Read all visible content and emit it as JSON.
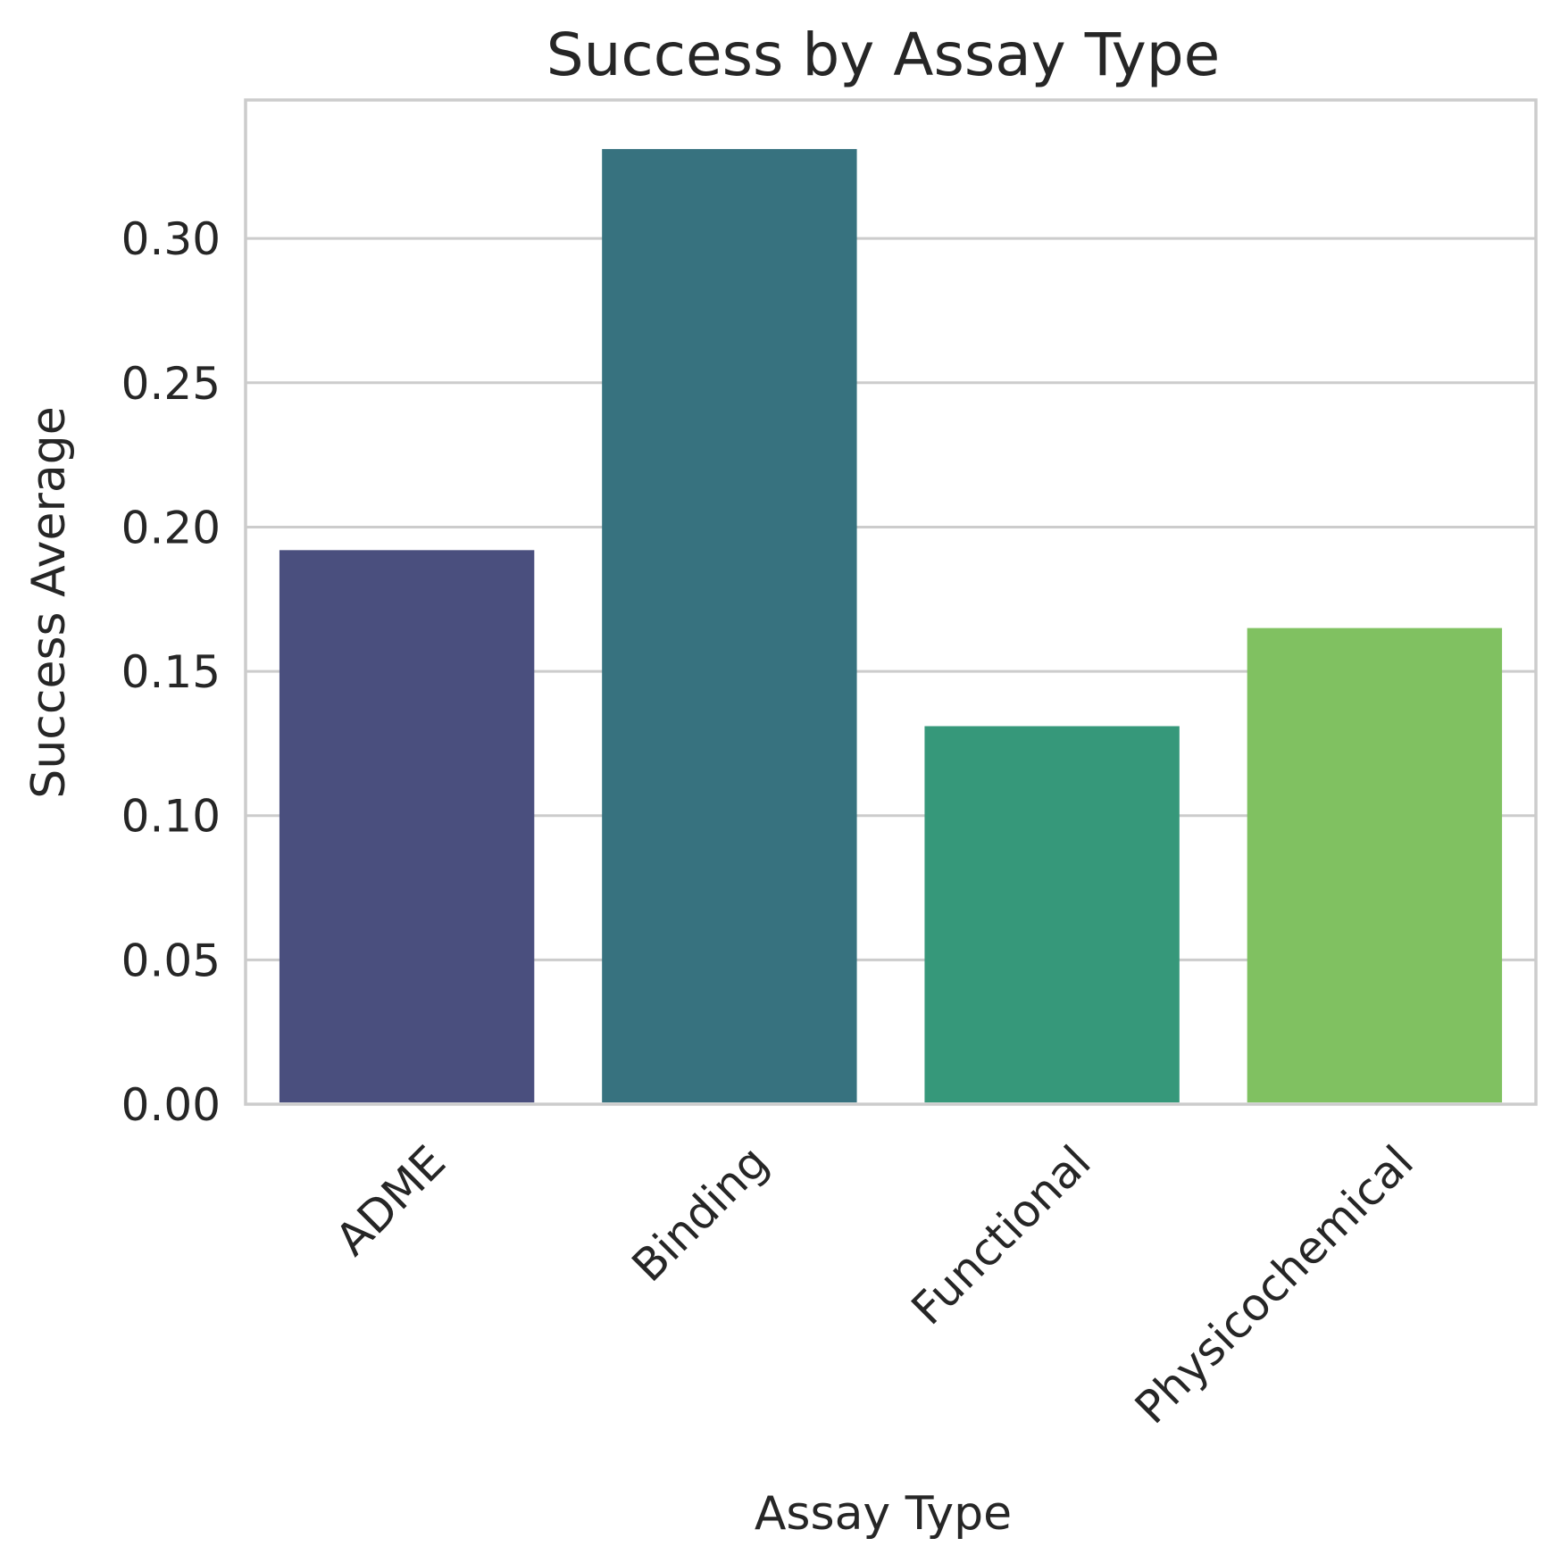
{
  "chart_data": {
    "type": "bar",
    "title": "Success by Assay Type",
    "xlabel": "Assay Type",
    "ylabel": "Success Average",
    "categories": [
      "ADME",
      "Binding",
      "Functional",
      "Physicochemical"
    ],
    "values": [
      0.192,
      0.331,
      0.131,
      0.165
    ],
    "colors": [
      "#4a4f7e",
      "#37727f",
      "#36987a",
      "#80c161"
    ],
    "ylim": [
      0,
      0.348
    ],
    "yticks": [
      0.0,
      0.05,
      0.1,
      0.15,
      0.2,
      0.25,
      0.3
    ],
    "ytick_labels": [
      "0.00",
      "0.05",
      "0.10",
      "0.15",
      "0.20",
      "0.25",
      "0.30"
    ],
    "grid": "horizontal",
    "xtick_rotation": 45
  }
}
